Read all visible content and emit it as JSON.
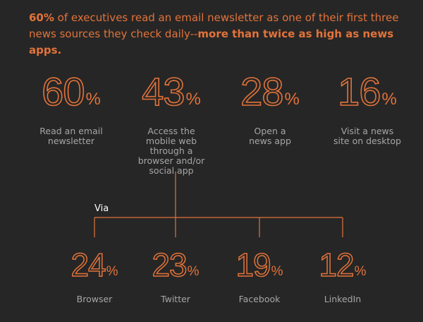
{
  "headline": {
    "part1_bold": "60%",
    "part2": " of executives read an email newsletter as one of their first three news sources they check daily--",
    "part3_bold": "more than twice as high as news apps."
  },
  "chart_data": [
    {
      "type": "bar",
      "categories": [
        "Read an email newsletter",
        "Access the mobile web through a browser and/or social app",
        "Open a news app",
        "Visit a news site on desktop"
      ],
      "values": [
        60,
        43,
        28,
        16
      ],
      "title": "",
      "xlabel": "",
      "ylabel": ""
    },
    {
      "type": "bar",
      "group_label": "Via",
      "categories": [
        "Browser",
        "Twitter",
        "Facebook",
        "LinkedIn"
      ],
      "values": [
        24,
        23,
        19,
        12
      ],
      "title": "",
      "xlabel": "",
      "ylabel": ""
    }
  ],
  "stats": [
    {
      "value": "60",
      "unit": "%",
      "label": "Read an email newsletter"
    },
    {
      "value": "43",
      "unit": "%",
      "label": "Access the mobile web through a browser and/or social app"
    },
    {
      "value": "28",
      "unit": "%",
      "label": "Open a news app"
    },
    {
      "value": "16",
      "unit": "%",
      "label": "Visit a news site on desktop"
    }
  ],
  "via": {
    "label": "Via",
    "items": [
      {
        "value": "24",
        "unit": "%",
        "label": "Browser"
      },
      {
        "value": "23",
        "unit": "%",
        "label": "Twitter"
      },
      {
        "value": "19",
        "unit": "%",
        "label": "Facebook"
      },
      {
        "value": "12",
        "unit": "%",
        "label": "LinkedIn"
      }
    ]
  },
  "colors": {
    "accent": "#e2733a",
    "background": "#262626",
    "label": "#a6a6a6",
    "via_text": "#ffffff"
  }
}
